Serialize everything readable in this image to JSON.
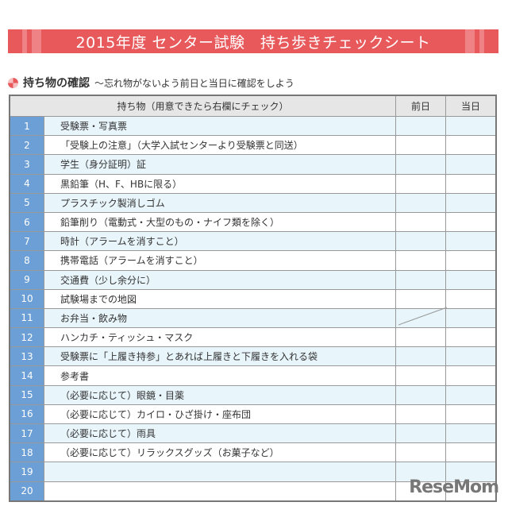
{
  "title": "2015年度 センター試験　持ち歩きチェックシート",
  "section": {
    "heading": "持ち物の確認",
    "subheading": "～忘れ物がないよう前日と当日に確認をしよう"
  },
  "table": {
    "headers": [
      "持ち物（用意できたら右欄にチェック）",
      "前日",
      "当日"
    ],
    "rows": [
      {
        "num": "1",
        "item": "受験票・写真票"
      },
      {
        "num": "2",
        "item": "「受験上の注意」（大学入試センターより受験票と同送）"
      },
      {
        "num": "3",
        "item": "学生（身分証明）証"
      },
      {
        "num": "4",
        "item": "黒鉛筆（H、F、HBに限る）"
      },
      {
        "num": "5",
        "item": "プラスチック製消しゴム"
      },
      {
        "num": "6",
        "item": "鉛筆削り（電動式・大型のもの・ナイフ類を除く）"
      },
      {
        "num": "7",
        "item": "時計（アラームを消すこと）"
      },
      {
        "num": "8",
        "item": "携帯電話（アラームを消すこと）"
      },
      {
        "num": "9",
        "item": "交通費（少し余分に）"
      },
      {
        "num": "10",
        "item": "試験場までの地図"
      },
      {
        "num": "11",
        "item": "お弁当・飲み物"
      },
      {
        "num": "12",
        "item": "ハンカチ・ティッシュ・マスク"
      },
      {
        "num": "13",
        "item": "受験票に「上履き持参」とあれば上履きと下履きを入れる袋"
      },
      {
        "num": "14",
        "item": "参考書"
      },
      {
        "num": "15",
        "item": "（必要に応じて）眼鏡・目薬"
      },
      {
        "num": "16",
        "item": "（必要に応じて）カイロ・ひざ掛け・座布団"
      },
      {
        "num": "17",
        "item": "（必要に応じて）雨具"
      },
      {
        "num": "18",
        "item": "（必要に応じて）リラックスグッズ（お菓子など）"
      },
      {
        "num": "19",
        "item": ""
      },
      {
        "num": "20",
        "item": ""
      }
    ]
  },
  "logo": "ReseMom"
}
